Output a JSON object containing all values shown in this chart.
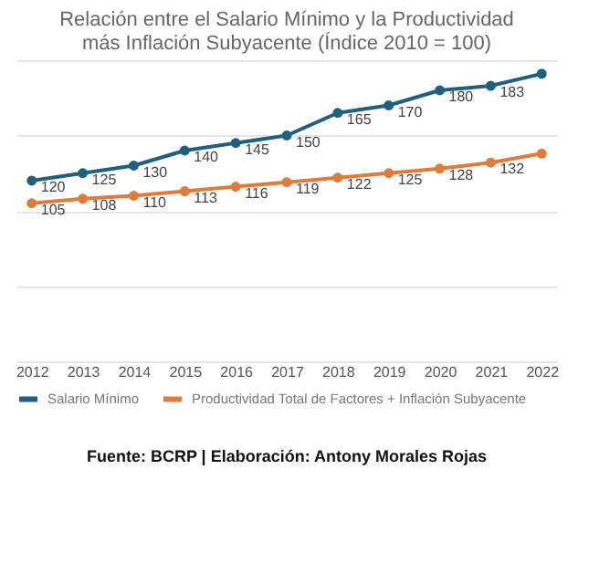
{
  "chart_data": {
    "type": "line",
    "title": [
      "Relación entre el Salario Mínimo y la Productividad",
      "más Inflación Subyacente (Índice 2010 = 100)"
    ],
    "categories": [
      "2012",
      "2013",
      "2014",
      "2015",
      "2016",
      "2017",
      "2018",
      "2019",
      "2020",
      "2021",
      "2022"
    ],
    "series": [
      {
        "name": "Salario Mínimo",
        "color": "#1f5f80",
        "values": [
          120,
          125,
          130,
          140,
          145,
          150,
          165,
          170,
          180,
          183,
          191
        ],
        "value_labels": [
          "120",
          "125",
          "130",
          "140",
          "145",
          "150",
          "165",
          "170",
          "180",
          "183",
          null
        ]
      },
      {
        "name": "Productividad Total de Factores + Inflación Subyacente",
        "color": "#e07b39",
        "values": [
          105,
          108,
          110,
          113,
          116,
          119,
          122,
          125,
          128,
          132,
          138
        ],
        "value_labels": [
          "105",
          "108",
          "110",
          "113",
          "116",
          "119",
          "122",
          "125",
          "128",
          "132",
          null
        ]
      }
    ],
    "ylim": [
      0,
      200
    ],
    "yticks": [
      {
        "value": 0,
        "label": null
      },
      {
        "value": 50,
        "label": null
      },
      {
        "value": 100,
        "label": null
      },
      {
        "value": 150,
        "label": null
      },
      {
        "value": 200,
        "label": null
      }
    ],
    "tick_labels": "x",
    "grid": "y",
    "legend": "bottom",
    "marker": "circle",
    "line_style": "solid",
    "annotations": [
      "Fuente: BCRP | Elaboración: Antony Morales Rojas"
    ]
  }
}
